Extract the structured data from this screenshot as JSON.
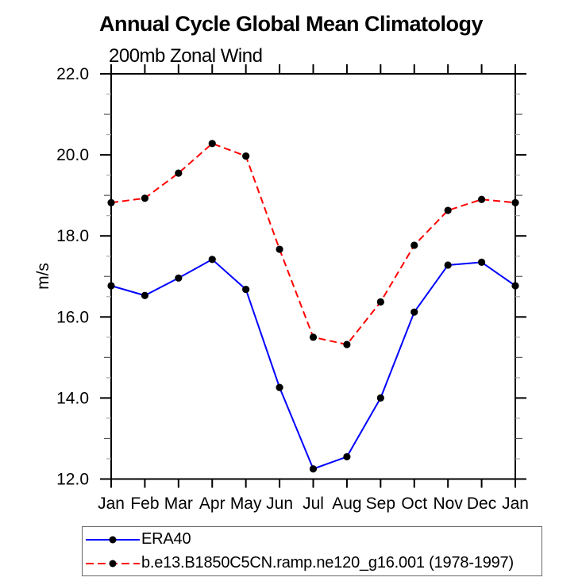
{
  "title": "Annual Cycle Global Mean Climatology",
  "subtitle": "200mb Zonal Wind",
  "ylabel": "m/s",
  "colors": {
    "era40_line": "#0000ff",
    "model_line": "#ff0000",
    "marker": "#000000",
    "axis": "#000000",
    "minor_tick_half": "#aaaaaa",
    "minor_tick_unit": "#555555",
    "legend_border": "#666666"
  },
  "chart_data": {
    "type": "line",
    "title": "Annual Cycle Global Mean Climatology",
    "subtitle": "200mb Zonal Wind",
    "xlabel": "",
    "ylabel": "m/s",
    "categories": [
      "Jan",
      "Feb",
      "Mar",
      "Apr",
      "May",
      "Jun",
      "Jul",
      "Aug",
      "Sep",
      "Oct",
      "Nov",
      "Dec",
      "Jan"
    ],
    "ylim": [
      12.0,
      22.0
    ],
    "ytick_major": [
      12,
      14,
      16,
      18,
      20,
      22
    ],
    "ytick_labels": [
      "12.0",
      "14.0",
      "16.0",
      "18.0",
      "20.0",
      "22.0"
    ],
    "ytick_minor_step": 0.5,
    "grid": false,
    "legend_position": "bottom",
    "series": [
      {
        "name": "ERA40",
        "color": "#0000ff",
        "style": "solid",
        "marker": "filled-circle",
        "values": [
          16.77,
          16.53,
          16.96,
          17.42,
          16.68,
          14.26,
          12.25,
          12.55,
          14.0,
          16.12,
          17.28,
          17.35,
          16.77
        ]
      },
      {
        "name": "b.e13.B1850C5CN.ramp.ne120_g16.001 (1978-1997)",
        "color": "#ff0000",
        "style": "dashed",
        "marker": "filled-circle",
        "values": [
          18.82,
          18.93,
          19.55,
          20.28,
          19.97,
          17.67,
          15.5,
          15.32,
          16.37,
          17.77,
          18.63,
          18.9,
          18.82
        ]
      }
    ]
  }
}
